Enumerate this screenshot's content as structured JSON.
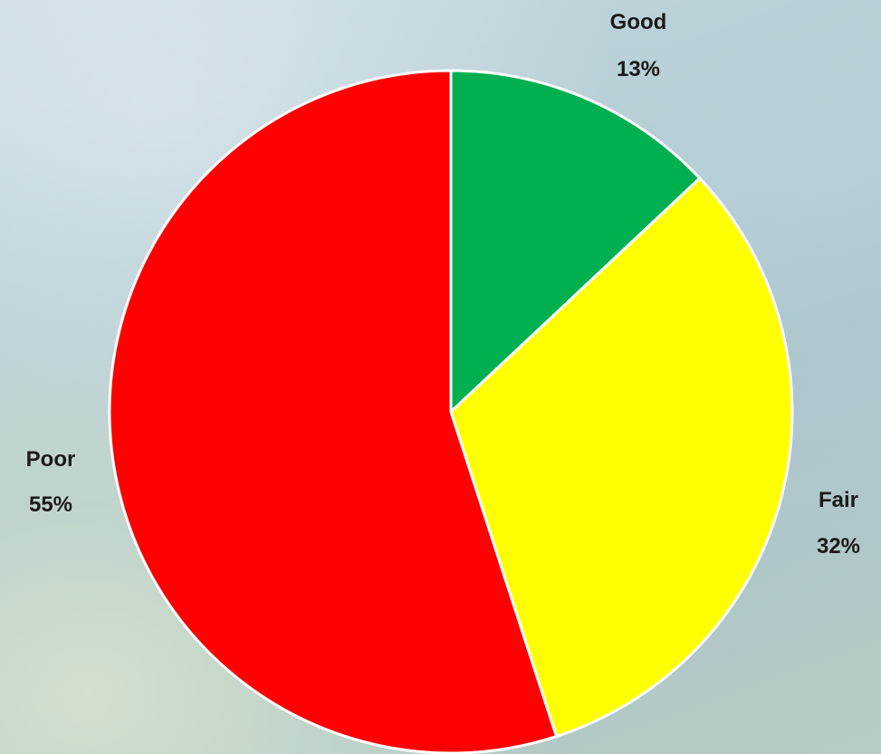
{
  "chart_data": {
    "type": "pie",
    "title": "",
    "slices": [
      {
        "label": "Good",
        "value": 13,
        "display": "13%",
        "color": "#00b050"
      },
      {
        "label": "Fair",
        "value": 32,
        "display": "32%",
        "color": "#ffff00"
      },
      {
        "label": "Poor",
        "value": 55,
        "display": "55%",
        "color": "#ff0000"
      }
    ],
    "start_angle": "12 o'clock",
    "direction": "clockwise",
    "legend": "none"
  }
}
